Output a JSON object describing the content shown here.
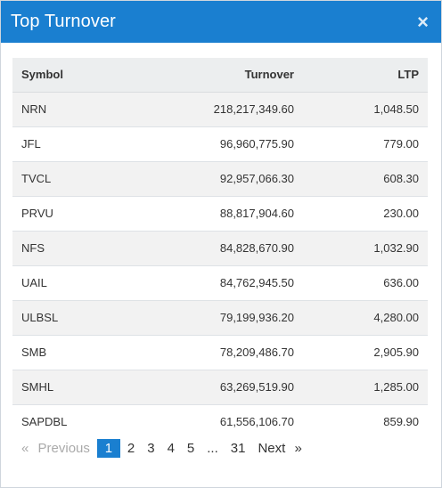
{
  "modal": {
    "title": "Top Turnover",
    "close_icon": "×"
  },
  "table": {
    "headers": {
      "symbol": "Symbol",
      "turnover": "Turnover",
      "ltp": "LTP"
    },
    "rows": [
      {
        "symbol": "NRN",
        "turnover": "218,217,349.60",
        "ltp": "1,048.50"
      },
      {
        "symbol": "JFL",
        "turnover": "96,960,775.90",
        "ltp": "779.00"
      },
      {
        "symbol": "TVCL",
        "turnover": "92,957,066.30",
        "ltp": "608.30"
      },
      {
        "symbol": "PRVU",
        "turnover": "88,817,904.60",
        "ltp": "230.00"
      },
      {
        "symbol": "NFS",
        "turnover": "84,828,670.90",
        "ltp": "1,032.90"
      },
      {
        "symbol": "UAIL",
        "turnover": "84,762,945.50",
        "ltp": "636.00"
      },
      {
        "symbol": "ULBSL",
        "turnover": "79,199,936.20",
        "ltp": "4,280.00"
      },
      {
        "symbol": "SMB",
        "turnover": "78,209,486.70",
        "ltp": "2,905.90"
      },
      {
        "symbol": "SMHL",
        "turnover": "63,269,519.90",
        "ltp": "1,285.00"
      },
      {
        "symbol": "SAPDBL",
        "turnover": "61,556,106.70",
        "ltp": "859.90"
      }
    ]
  },
  "pagination": {
    "prev_arrow": "«",
    "previous": "Previous",
    "pages": [
      "1",
      "2",
      "3",
      "4",
      "5"
    ],
    "ellipsis": "...",
    "last_page": "31",
    "next": "Next",
    "next_arrow": "»",
    "current": "1"
  },
  "colors": {
    "header_bg": "#1a7fd0",
    "active_page": "#1a7fd0"
  }
}
